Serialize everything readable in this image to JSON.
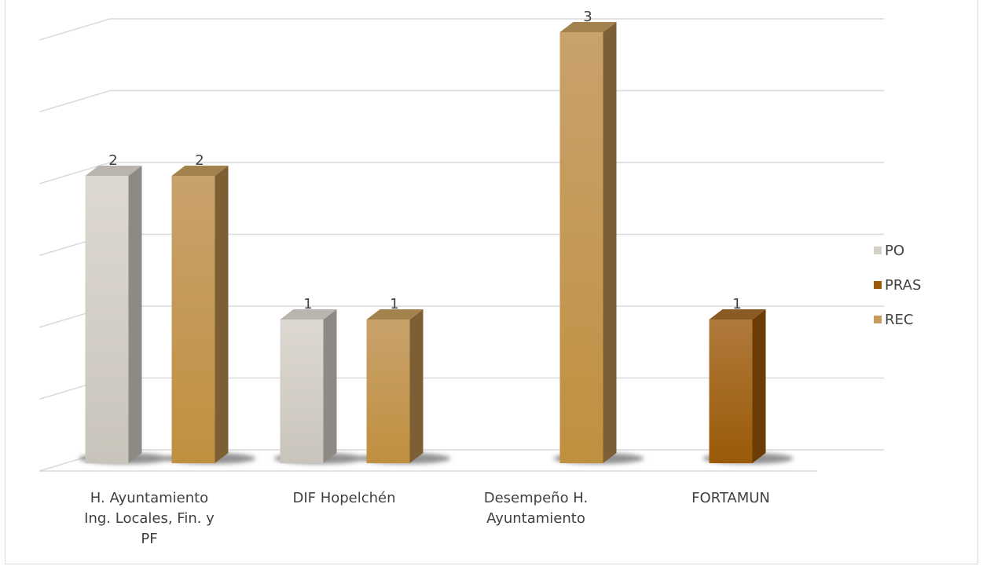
{
  "chart_data": {
    "type": "bar",
    "categories": [
      "H. Ayuntamiento Ing. Locales, Fin. y PF",
      "DIF Hopelchén",
      "Desempeño H. Ayuntamiento",
      "FORTAMUN"
    ],
    "series": [
      {
        "name": "PO",
        "values": [
          2,
          1,
          null,
          null
        ],
        "color": "#d6d1c8"
      },
      {
        "name": "PRAS",
        "values": [
          null,
          null,
          null,
          1
        ],
        "color": "#9c5a0c"
      },
      {
        "name": "REC",
        "values": [
          2,
          1,
          3,
          null
        ],
        "color": "#c59b5e"
      }
    ],
    "ylim": [
      0,
      3
    ],
    "grid": true,
    "legend_position": "right",
    "style": "3d-column"
  },
  "legend": {
    "items": [
      {
        "label": "PO",
        "color": "#d6d1c8"
      },
      {
        "label": "PRAS",
        "color": "#9c5a0c"
      },
      {
        "label": "REC",
        "color": "#c59b5e"
      }
    ]
  }
}
